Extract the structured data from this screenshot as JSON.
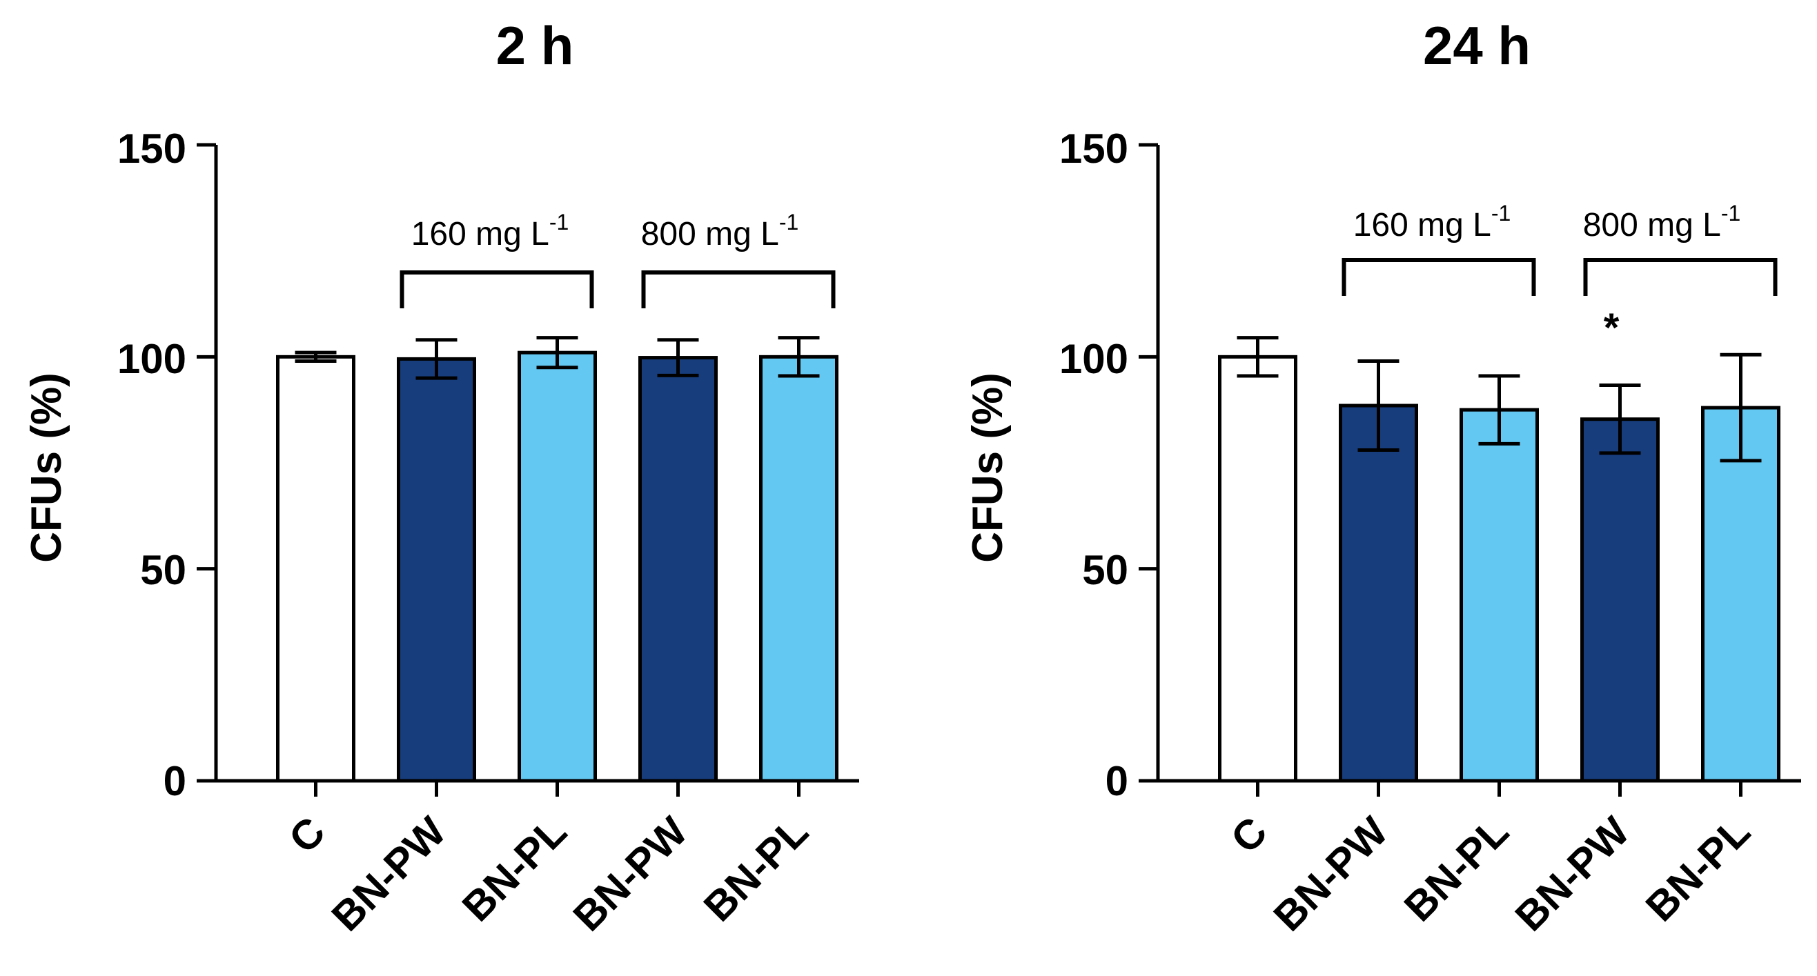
{
  "chart_data": [
    {
      "type": "bar",
      "title": "2 h",
      "xlabel": "",
      "ylabel": "CFUs (%)",
      "ylim": [
        0,
        150
      ],
      "yticks": [
        "0",
        "50",
        "100",
        "150"
      ],
      "categories": [
        "C",
        "BN-PW",
        "BN-PL",
        "BN-PW",
        "BN-PL"
      ],
      "values": [
        100,
        99.5,
        101,
        99.8,
        100
      ],
      "errors": [
        1,
        4.5,
        3.5,
        4.2,
        4.5
      ],
      "colors": [
        "#ffffff",
        "#173d7c",
        "#63c9f3",
        "#173d7c",
        "#63c9f3"
      ],
      "brackets": [
        {
          "label": "160 mg L",
          "sup": "-1",
          "from": 1,
          "to": 2
        },
        {
          "label": "800 mg L",
          "sup": "-1",
          "from": 3,
          "to": 4
        }
      ],
      "significance": [
        "",
        "",
        "",
        "",
        ""
      ]
    },
    {
      "type": "bar",
      "title": "24 h",
      "xlabel": "",
      "ylabel": "CFUs (%)",
      "ylim": [
        0,
        150
      ],
      "yticks": [
        "0",
        "50",
        "100",
        "150"
      ],
      "categories": [
        "C",
        "BN-PW",
        "BN-PL",
        "BN-PW",
        "BN-PL"
      ],
      "values": [
        100,
        88.5,
        87.5,
        85.3,
        88
      ],
      "errors": [
        4.5,
        10.5,
        8,
        8,
        12.5
      ],
      "colors": [
        "#ffffff",
        "#173d7c",
        "#63c9f3",
        "#173d7c",
        "#63c9f3"
      ],
      "brackets": [
        {
          "label": "160 mg L",
          "sup": "-1",
          "from": 1,
          "to": 2
        },
        {
          "label": "800 mg L",
          "sup": "-1",
          "from": 3,
          "to": 4
        }
      ],
      "significance": [
        "",
        "",
        "",
        "*",
        ""
      ]
    }
  ]
}
